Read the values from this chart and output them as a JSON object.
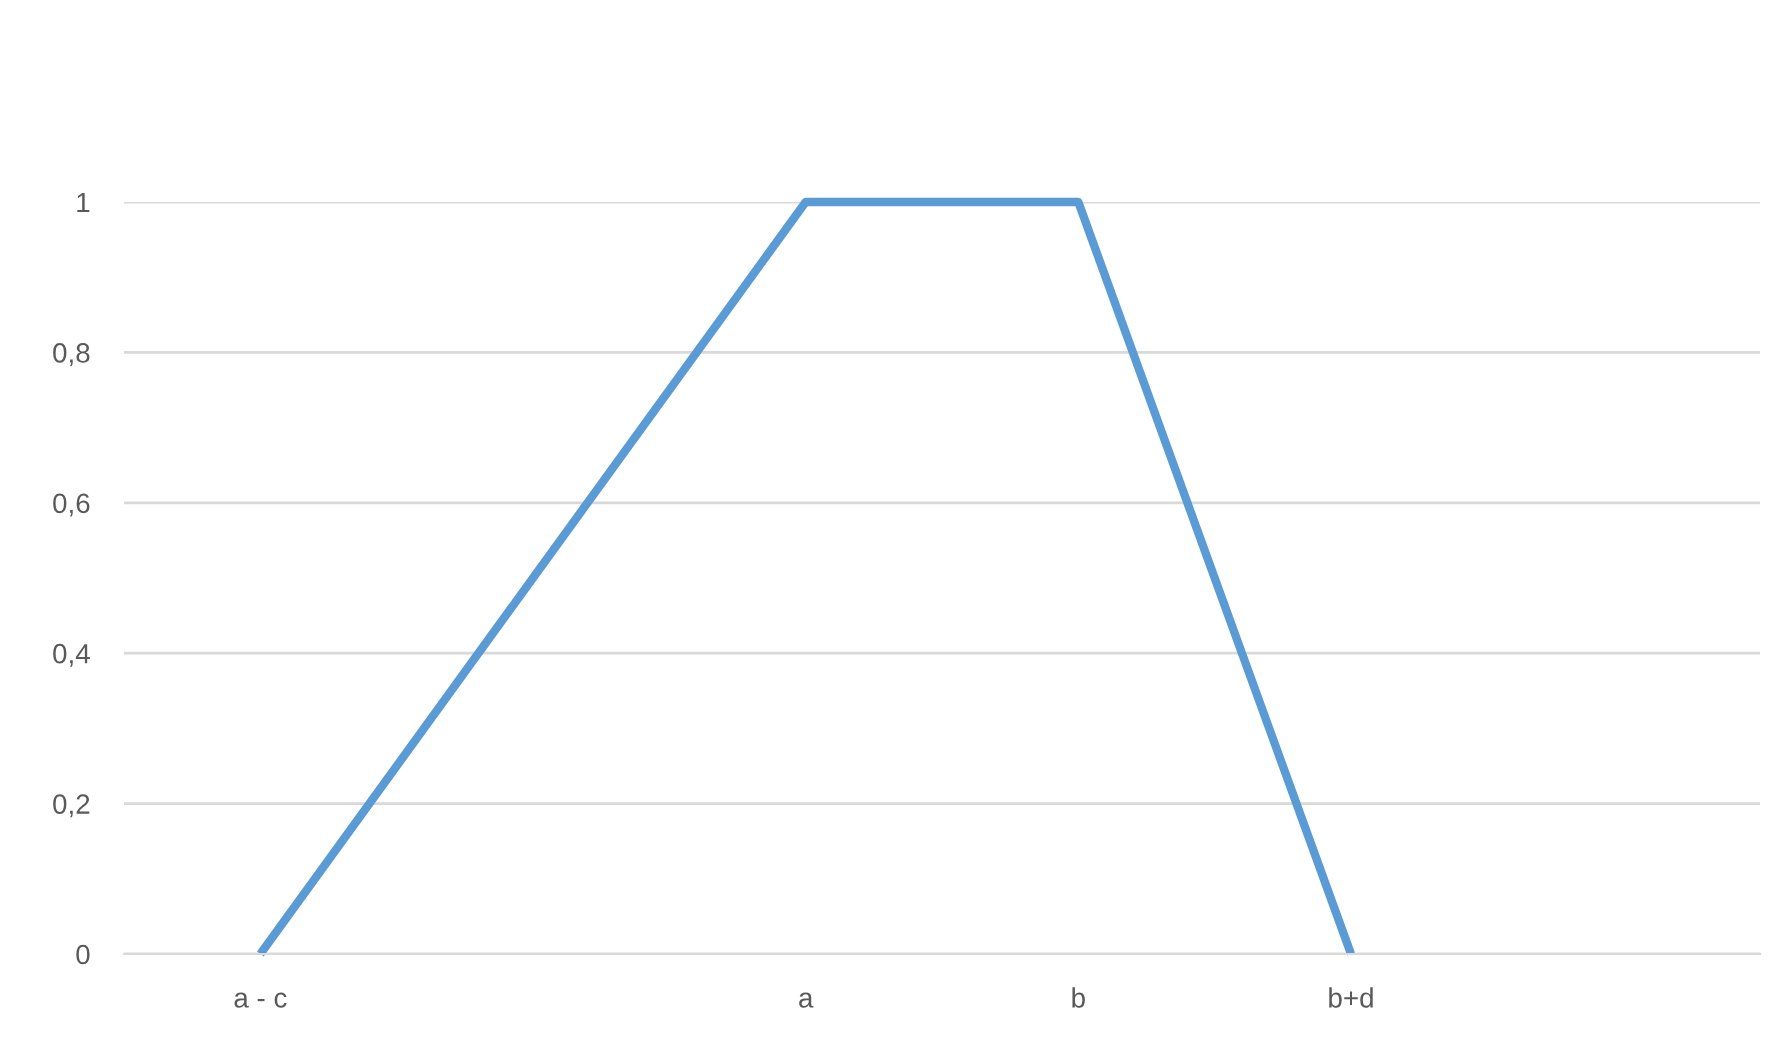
{
  "chart_data": {
    "type": "line",
    "categories": [
      "a - c",
      null,
      "a",
      "b",
      "b+d",
      null
    ],
    "series": [
      {
        "color": "#5b9bd5",
        "values": [
          0,
          0.5,
          1,
          1,
          0,
          null
        ]
      }
    ],
    "ylim": [
      0,
      1
    ],
    "yticks": [
      0,
      {
        "value": 0.2,
        "label": "0,2"
      },
      {
        "value": 0.4,
        "label": "0,4"
      },
      {
        "value": 0.6,
        "label": "0,6"
      },
      {
        "value": 0.8,
        "label": "0,8"
      },
      1
    ],
    "grid": "y",
    "marker": "none",
    "line_style": "solid"
  }
}
